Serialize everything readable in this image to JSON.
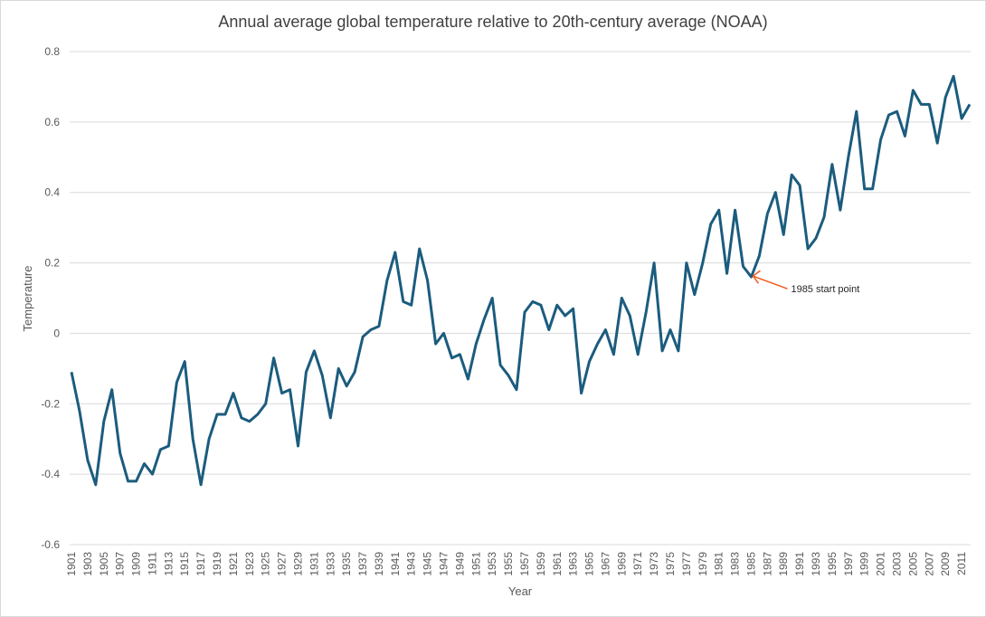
{
  "chart_data": {
    "type": "line",
    "title": "Annual average global temperature relative to 20th-century average (NOAA)",
    "xlabel": "Year",
    "ylabel": "Temperature",
    "ylim": [
      -0.6,
      0.8
    ],
    "yticks": [
      0.8,
      0.6,
      0.4,
      0.2,
      0,
      -0.2,
      -0.4,
      -0.6
    ],
    "ytick_labels": [
      "0.8",
      "0.6",
      "0.4",
      "0.2",
      "0",
      "-0.2",
      "-0.4",
      "-0.6"
    ],
    "grid": true,
    "x_tick_step": 2,
    "series": [
      {
        "name": "Temperature",
        "color": "#1b5c7e",
        "x": [
          1901,
          1902,
          1903,
          1904,
          1905,
          1906,
          1907,
          1908,
          1909,
          1910,
          1911,
          1912,
          1913,
          1914,
          1915,
          1916,
          1917,
          1918,
          1919,
          1920,
          1921,
          1922,
          1923,
          1924,
          1925,
          1926,
          1927,
          1928,
          1929,
          1930,
          1931,
          1932,
          1933,
          1934,
          1935,
          1936,
          1937,
          1938,
          1939,
          1940,
          1941,
          1942,
          1943,
          1944,
          1945,
          1946,
          1947,
          1948,
          1949,
          1950,
          1951,
          1952,
          1953,
          1954,
          1955,
          1956,
          1957,
          1958,
          1959,
          1960,
          1961,
          1962,
          1963,
          1964,
          1965,
          1966,
          1967,
          1968,
          1969,
          1970,
          1971,
          1972,
          1973,
          1974,
          1975,
          1976,
          1977,
          1978,
          1979,
          1980,
          1981,
          1982,
          1983,
          1984,
          1985,
          1986,
          1987,
          1988,
          1989,
          1990,
          1991,
          1992,
          1993,
          1994,
          1995,
          1996,
          1997,
          1998,
          1999,
          2000,
          2001,
          2002,
          2003,
          2004,
          2005,
          2006,
          2007,
          2008,
          2009,
          2010,
          2011,
          2012
        ],
        "values": [
          -0.11,
          -0.22,
          -0.36,
          -0.43,
          -0.25,
          -0.16,
          -0.34,
          -0.42,
          -0.42,
          -0.37,
          -0.4,
          -0.33,
          -0.32,
          -0.14,
          -0.08,
          -0.3,
          -0.43,
          -0.3,
          -0.23,
          -0.23,
          -0.17,
          -0.24,
          -0.25,
          -0.23,
          -0.2,
          -0.07,
          -0.17,
          -0.16,
          -0.32,
          -0.11,
          -0.05,
          -0.12,
          -0.24,
          -0.1,
          -0.15,
          -0.11,
          -0.01,
          0.01,
          0.02,
          0.15,
          0.23,
          0.09,
          0.08,
          0.24,
          0.15,
          -0.03,
          0.0,
          -0.07,
          -0.06,
          -0.13,
          -0.03,
          0.04,
          0.1,
          -0.09,
          -0.12,
          -0.16,
          0.06,
          0.09,
          0.08,
          0.01,
          0.08,
          0.05,
          0.07,
          -0.17,
          -0.08,
          -0.03,
          0.01,
          -0.06,
          0.1,
          0.05,
          -0.06,
          0.06,
          0.2,
          -0.05,
          0.01,
          -0.05,
          0.2,
          0.11,
          0.2,
          0.31,
          0.35,
          0.17,
          0.35,
          0.19,
          0.16,
          0.22,
          0.34,
          0.4,
          0.28,
          0.45,
          0.42,
          0.24,
          0.27,
          0.33,
          0.48,
          0.35,
          0.5,
          0.63,
          0.41,
          0.41,
          0.55,
          0.62,
          0.63,
          0.56,
          0.69,
          0.65,
          0.65,
          0.54,
          0.67,
          0.73,
          0.61,
          0.65
        ]
      }
    ],
    "annotations": [
      {
        "text": "1985 start point",
        "x": 1985,
        "y": 0.16,
        "color": "#f05a1a"
      }
    ]
  }
}
